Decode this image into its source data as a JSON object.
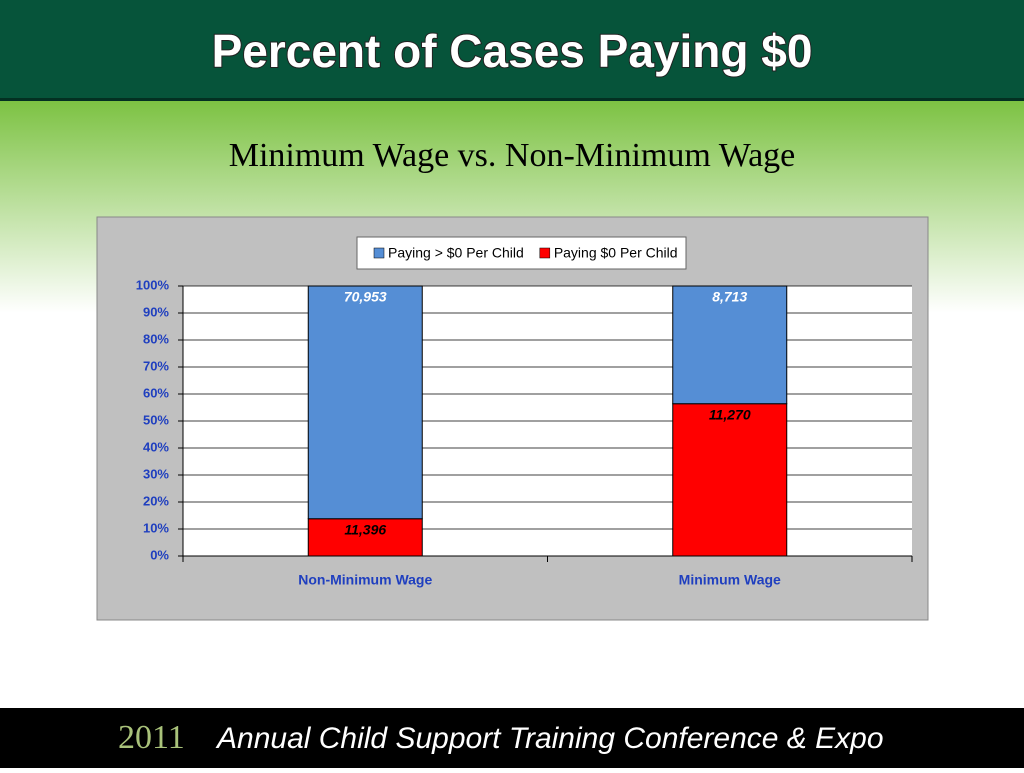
{
  "chart_data": {
    "type": "stacked_bar",
    "title": "Percent of Cases Paying $0",
    "subtitle": "Minimum Wage vs. Non-Minimum Wage",
    "categories": [
      "Non-Minimum Wage",
      "Minimum Wage"
    ],
    "series": [
      {
        "name": "Paying $0 Per Child",
        "color": "#ff0000",
        "values": [
          13.8,
          56.4
        ],
        "data_labels": [
          "11,396",
          "11,270"
        ]
      },
      {
        "name": "Paying > $0 Per Child",
        "color": "#558ed5",
        "values": [
          86.2,
          43.6
        ],
        "data_labels": [
          "70,953",
          "8,713"
        ]
      }
    ],
    "ylim": [
      0,
      100
    ],
    "yticks": [
      {
        "value": 0,
        "label": "0%"
      },
      {
        "value": 10,
        "label": "10%"
      },
      {
        "value": 20,
        "label": "20%"
      },
      {
        "value": 30,
        "label": "30%"
      },
      {
        "value": 40,
        "label": "40%"
      },
      {
        "value": 50,
        "label": "50%"
      },
      {
        "value": 60,
        "label": "60%"
      },
      {
        "value": 70,
        "label": "70%"
      },
      {
        "value": 80,
        "label": "80%"
      },
      {
        "value": 90,
        "label": "90%"
      },
      {
        "value": 100,
        "label": "100%"
      }
    ],
    "grid": true,
    "legend": "top"
  },
  "footer": {
    "year": "2011",
    "text": "Annual Child Support Training Conference & Expo"
  }
}
